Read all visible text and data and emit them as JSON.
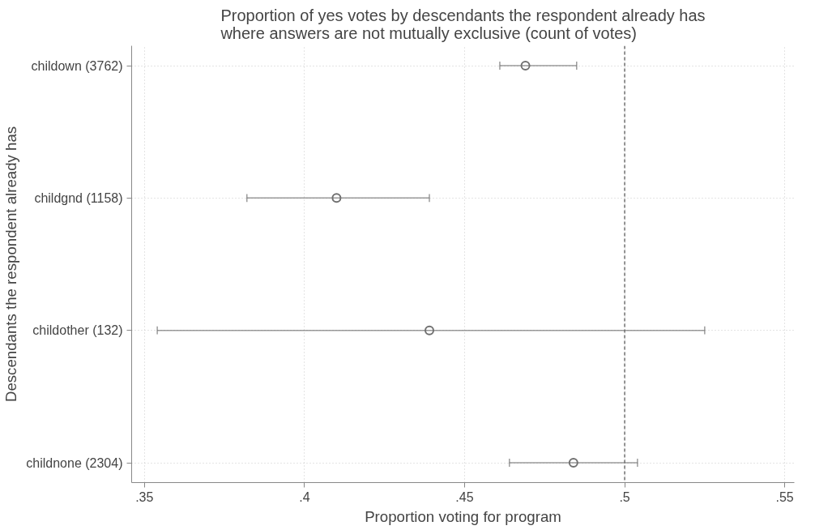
{
  "chart_data": {
    "type": "scatter",
    "orientation": "horizontal",
    "title": "Proportion of yes votes by descendants the respondent already has\nwhere answers are not mutually exclusive (count of votes)",
    "xlabel": "Proportion voting for program",
    "ylabel": "Descendants the respondent already has",
    "categories": [
      "childown (3762)",
      "childgnd (1158)",
      "childother (132)",
      "childnone (2304)"
    ],
    "values": [
      0.469,
      0.41,
      0.439,
      0.484
    ],
    "errors": [
      [
        0.461,
        0.485
      ],
      [
        0.382,
        0.439
      ],
      [
        0.354,
        0.525
      ],
      [
        0.464,
        0.504
      ]
    ],
    "color": "#707070",
    "marker": "circle",
    "xlim": [
      0.346,
      0.553
    ],
    "xticks": [
      {
        "value": 0.35,
        "label": ".35"
      },
      {
        "value": 0.4,
        "label": ".4"
      },
      {
        "value": 0.45,
        "label": ".45"
      },
      {
        "value": 0.5,
        "label": ".5"
      },
      {
        "value": 0.55,
        "label": ".55"
      }
    ],
    "ref_lines": [
      {
        "axis": "x",
        "value": 0.5,
        "label": null,
        "color": "#707070",
        "line_style": "dashed"
      }
    ],
    "grid": true
  }
}
